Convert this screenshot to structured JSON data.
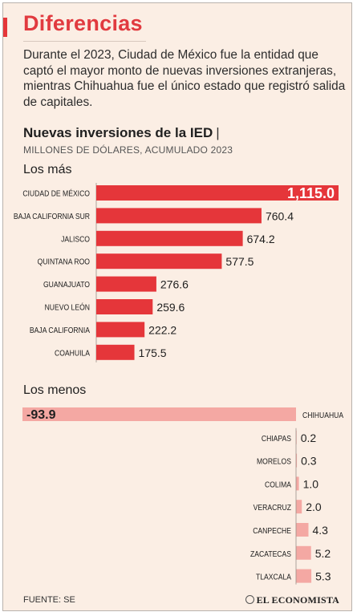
{
  "header": {
    "title": "Diferencias",
    "intro": "Durante el 2023, Ciudad de México fue la entidad que captó el mayor monto de nuevas inversiones extranjeras, mientras Chihuahua fue el único estado que registró salida de capitales."
  },
  "chart_data": {
    "type": "bar",
    "title": "Nuevas inversiones de la IED",
    "subtitle": "MILLONES DE DÓLARES, ACUMULADO 2023",
    "groups": [
      {
        "name": "Los más",
        "categories": [
          "CIUDAD DE MÉXICO",
          "BAJA CALIFORNIA SUR",
          "JALISCO",
          "QUINTANA ROO",
          "GUANAJUATO",
          "NUEVO LEÓN",
          "BAJA CALIFORNIA",
          "COAHUILA"
        ],
        "values": [
          1115.0,
          760.4,
          674.2,
          577.5,
          276.6,
          259.6,
          222.2,
          175.5
        ],
        "labels": [
          "1,115.0",
          "760.4",
          "674.2",
          "577.5",
          "276.6",
          "259.6",
          "222.2",
          "175.5"
        ],
        "color": "#e5363a"
      },
      {
        "name": "Los menos",
        "categories": [
          "CHIHUAHUA",
          "CHIAPAS",
          "MORELOS",
          "COLIMA",
          "VERACRUZ",
          "CANPECHE",
          "ZACATECAS",
          "TLAXCALA"
        ],
        "values": [
          -93.9,
          0.2,
          0.3,
          1.0,
          2.0,
          4.3,
          5.2,
          5.3
        ],
        "labels": [
          "-93.9",
          "0.2",
          "0.3",
          "1.0",
          "2.0",
          "4.3",
          "5.2",
          "5.3"
        ],
        "color": "#f4a8a3"
      }
    ]
  },
  "footer": {
    "source": "FUENTE: SE",
    "brand": "EL ECONOMISTA"
  }
}
